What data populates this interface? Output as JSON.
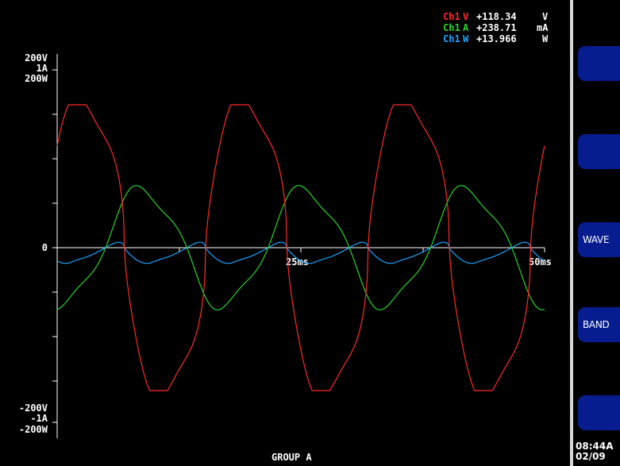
{
  "readouts": [
    {
      "channel": "Ch1",
      "unit_symbol": "V",
      "value": "+118.34",
      "unit": "V",
      "color": "#ff2a2a"
    },
    {
      "channel": "Ch1",
      "unit_symbol": "A",
      "value": "+238.71",
      "unit": "mA",
      "color": "#2ad42a"
    },
    {
      "channel": "Ch1",
      "unit_symbol": "W",
      "value": "+13.966",
      "unit": "W",
      "color": "#1aa3ff"
    }
  ],
  "readout_value_color": "#ffffff",
  "y_axis": {
    "top_labels": [
      "200V",
      "1A",
      "200W"
    ],
    "zero_label": "0",
    "bottom_labels": [
      "-200V",
      "-1A",
      "-200W"
    ]
  },
  "x_axis": {
    "mid_label": "25ms",
    "end_label": "50ms"
  },
  "group_label": "GROUP A",
  "softkeys": [
    {
      "label": ""
    },
    {
      "label": ""
    },
    {
      "label": "WAVE"
    },
    {
      "label": "BAND"
    },
    {
      "label": ""
    }
  ],
  "clock": {
    "time": "08:44A",
    "date": "02/09"
  },
  "colors": {
    "voltage": "#ff2a2a",
    "current": "#2ad42a",
    "power": "#1aa3ff",
    "axis": "#ffffff",
    "softkey": "#071c8f"
  }
}
